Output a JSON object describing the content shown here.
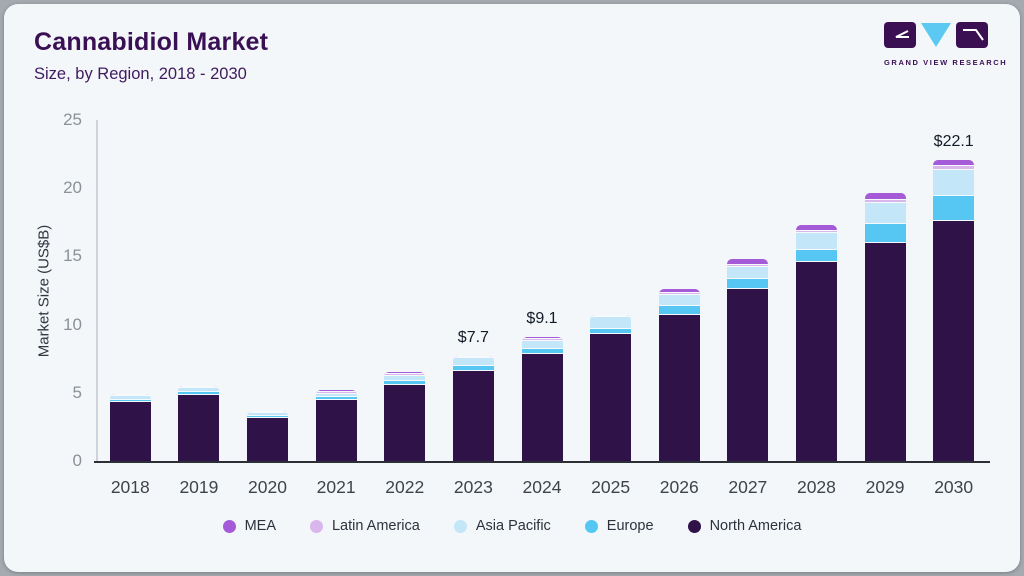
{
  "header": {
    "title": "Cannabidiol Market",
    "subtitle": "Size, by Region, 2018 - 2030",
    "brand": "GRAND VIEW RESEARCH"
  },
  "colors": {
    "card_bg": "#f3f7fa",
    "outer_bg": "#a5aab1",
    "title_purple": "#3a1055",
    "axis_line_dark": "#2c3036",
    "logo_dark": "#3b1053",
    "logo_blue": "#5bc9f1"
  },
  "chart_data": {
    "type": "bar",
    "stacked": true,
    "title": "Cannabidiol Market Size, by Region, 2018 - 2030",
    "xlabel": "",
    "ylabel": "Market Size (US$B)",
    "ylim": [
      0,
      25
    ],
    "yticks": [
      0,
      5,
      10,
      15,
      20,
      25
    ],
    "grid": false,
    "legend_position": "bottom",
    "categories": [
      "2018",
      "2019",
      "2020",
      "2021",
      "2022",
      "2023",
      "2024",
      "2025",
      "2026",
      "2027",
      "2028",
      "2029",
      "2030"
    ],
    "series": [
      {
        "name": "North America",
        "color": "#2f1248",
        "values": [
          4.35,
          4.9,
          3.25,
          4.45,
          5.55,
          6.6,
          7.85,
          9.3,
          10.7,
          12.6,
          14.6,
          16.0,
          17.6
        ]
      },
      {
        "name": "Europe",
        "color": "#55c7f2",
        "values": [
          0.2,
          0.2,
          0.15,
          0.25,
          0.32,
          0.4,
          0.38,
          0.4,
          0.65,
          0.75,
          0.9,
          1.35,
          1.8
        ]
      },
      {
        "name": "Asia Pacific",
        "color": "#c3e7f9",
        "values": [
          0.25,
          0.28,
          0.2,
          0.25,
          0.35,
          0.55,
          0.6,
          0.85,
          0.8,
          0.9,
          1.2,
          1.55,
          1.95
        ]
      },
      {
        "name": "Latin America",
        "color": "#d9b6ec",
        "values": [
          0.05,
          0.06,
          0.03,
          0.12,
          0.14,
          0.07,
          0.13,
          0.07,
          0.15,
          0.15,
          0.17,
          0.22,
          0.3
        ]
      },
      {
        "name": "MEA",
        "color": "#a55ad8",
        "values": [
          0.05,
          0.06,
          0.03,
          0.12,
          0.15,
          0.08,
          0.14,
          0.08,
          0.3,
          0.4,
          0.45,
          0.5,
          0.45
        ]
      }
    ],
    "totals": [
      4.9,
      5.5,
      3.66,
      5.19,
      6.51,
      7.7,
      9.1,
      10.7,
      12.6,
      14.8,
      17.32,
      19.62,
      22.1
    ],
    "annotations": [
      {
        "category": "2023",
        "label": "$7.7"
      },
      {
        "category": "2024",
        "label": "$9.1"
      },
      {
        "category": "2030",
        "label": "$22.1"
      }
    ],
    "legend": [
      "MEA",
      "Latin America",
      "Asia Pacific",
      "Europe",
      "North America"
    ]
  }
}
